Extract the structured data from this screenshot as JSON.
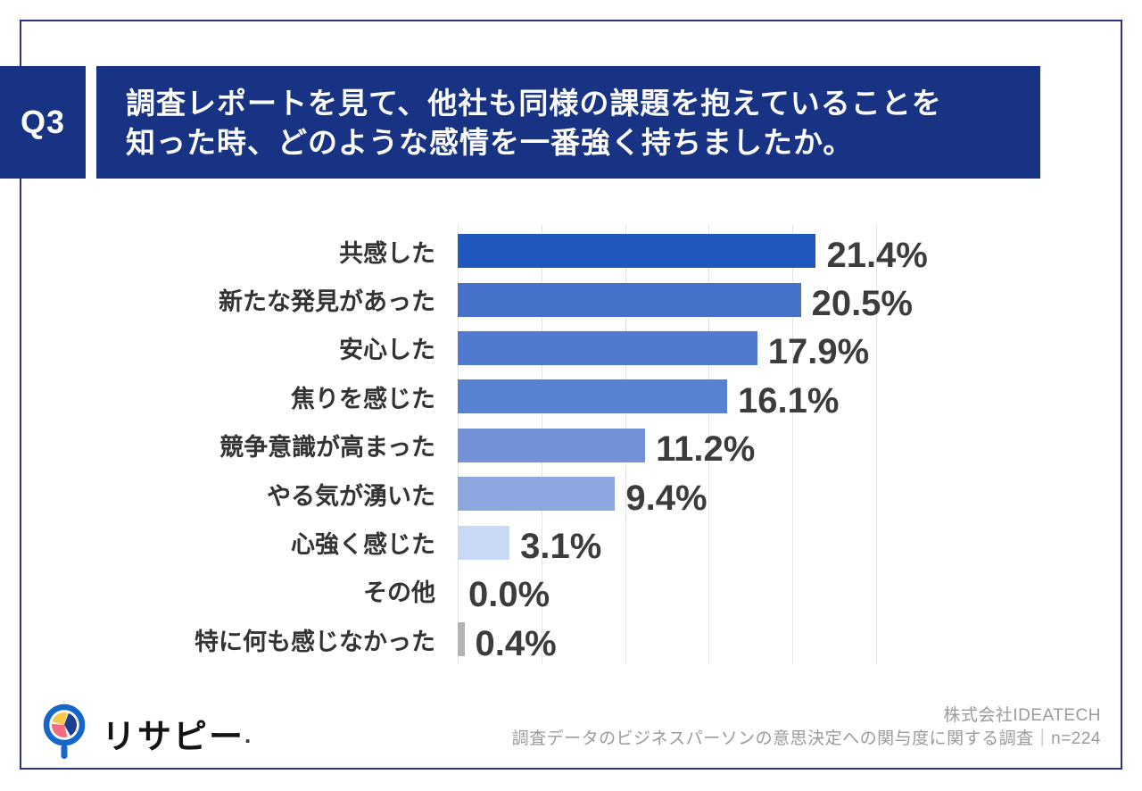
{
  "question": {
    "badge": "Q3",
    "line1": "調査レポートを見て、他社も同様の課題を抱えていることを",
    "line2": "知った時、どのような感情を一番強く持ちましたか。"
  },
  "chart_data": {
    "type": "bar",
    "orientation": "horizontal",
    "title": "調査レポートを見て、他社も同様の課題を抱えていることを知った時、どのような感情を一番強く持ちましたか。",
    "categories": [
      "共感した",
      "新たな発見があった",
      "安心した",
      "焦りを感じた",
      "競争意識が高まった",
      "やる気が湧いた",
      "心強く感じた",
      "その他",
      "特に何も感じなかった"
    ],
    "values": [
      21.4,
      20.5,
      17.9,
      16.1,
      11.2,
      9.4,
      3.1,
      0.0,
      0.4
    ],
    "value_labels": [
      "21.4%",
      "20.5%",
      "17.9%",
      "16.1%",
      "11.2%",
      "9.4%",
      "3.1%",
      "0.0%",
      "0.4%"
    ],
    "bar_colors": [
      "#1F57BD",
      "#4571CA",
      "#4F7ACE",
      "#5981D1",
      "#7291D7",
      "#8CA6DF",
      "#C8D9F5",
      null,
      "#B3B3B3"
    ],
    "xlim": [
      0,
      25
    ],
    "gridline_step": 5,
    "grid": true,
    "legend": "none",
    "xlabel": "",
    "ylabel": ""
  },
  "footer": {
    "logo_text": "リサピー",
    "logo_mark": ".",
    "company": "株式会社IDEATECH",
    "survey": "調査データのビジネスパーソンの意思決定への関与度に関する調査｜n=224"
  },
  "colors": {
    "banner_navy": "#183383",
    "frame_border": "#2B3280",
    "value_text": "#3C3C3C",
    "label_text": "#333333",
    "gridline": "#E3E3E3",
    "credit_gray": "#9B9B9B",
    "logo_ring_blue": "#1566C9",
    "logo_pie_yellow": "#F7C84A",
    "logo_pie_navy": "#1C3E8F",
    "logo_pie_pink": "#F26D80"
  }
}
